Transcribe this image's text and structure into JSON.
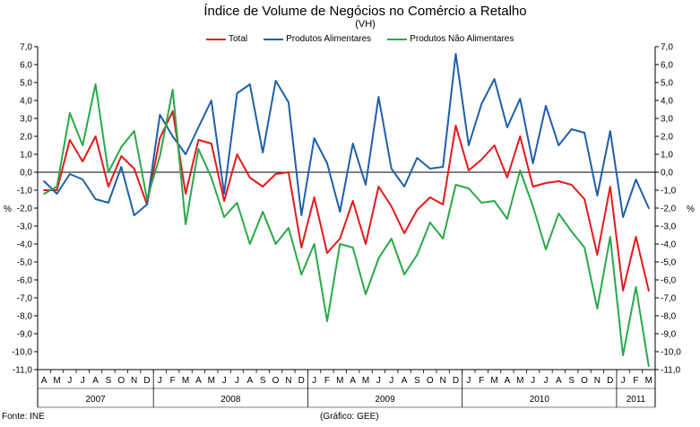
{
  "chart_data": {
    "type": "line",
    "title": "Índice de Volume de Negócios no Comércio a Retalho",
    "subtitle": "(VH)",
    "ylabel_left": "%",
    "ylabel_right": "%",
    "ylim": [
      -11,
      7
    ],
    "yticks": [
      7.0,
      6.0,
      5.0,
      4.0,
      3.0,
      2.0,
      1.0,
      0.0,
      -1.0,
      -2.0,
      -3.0,
      -4.0,
      -5.0,
      -6.0,
      -7.0,
      -8.0,
      -9.0,
      -10.0,
      -11.0
    ],
    "ytick_labels_left": [
      "7,0",
      "6,0",
      "5,0",
      "4,0",
      "3,0",
      "2,0",
      "1,0",
      "0,0",
      "-1,0",
      "-2,0",
      "-3,0",
      "-4,0",
      "-5,0",
      "-6,0",
      "-7,0",
      "-8,0",
      "-9,0",
      "-10,0",
      "-11,0"
    ],
    "ytick_labels_right": [
      "7,0",
      "6,0",
      "5,0",
      "4,0",
      "3,0",
      "2,0",
      "1,0",
      "0,0",
      "-1,0",
      "-2,0",
      "-3,0",
      "-4,0",
      "-5,0",
      "-6,0",
      "-7,0",
      "-8,0",
      "-9,0",
      "-10,0",
      "-11,0"
    ],
    "months": [
      "A",
      "M",
      "J",
      "J",
      "A",
      "S",
      "O",
      "N",
      "D",
      "J",
      "F",
      "M",
      "A",
      "M",
      "J",
      "J",
      "A",
      "S",
      "O",
      "N",
      "D",
      "J",
      "F",
      "M",
      "A",
      "M",
      "J",
      "J",
      "A",
      "S",
      "O",
      "N",
      "D",
      "J",
      "F",
      "M",
      "A",
      "M",
      "J",
      "J",
      "A",
      "S",
      "O",
      "N",
      "D",
      "J",
      "F",
      "M"
    ],
    "years": [
      {
        "label": "2007",
        "start": 0,
        "end": 8
      },
      {
        "label": "2008",
        "start": 9,
        "end": 20
      },
      {
        "label": "2009",
        "start": 21,
        "end": 32
      },
      {
        "label": "2010",
        "start": 33,
        "end": 44
      },
      {
        "label": "2011",
        "start": 45,
        "end": 47
      }
    ],
    "series": [
      {
        "name": "Total",
        "color": "#e31a1c",
        "values": [
          -1.0,
          -1.0,
          1.8,
          0.6,
          2.0,
          -0.8,
          0.9,
          0.2,
          -1.8,
          1.9,
          3.4,
          -1.2,
          1.8,
          1.6,
          -1.6,
          1.0,
          -0.3,
          -0.8,
          -0.1,
          0.0,
          -4.2,
          -1.4,
          -4.5,
          -3.7,
          -1.6,
          -4.0,
          -0.8,
          -1.9,
          -3.4,
          -2.1,
          -1.4,
          -1.8,
          2.6,
          0.1,
          0.7,
          1.5,
          -0.3,
          2.0,
          -0.8,
          -0.6,
          -0.5,
          -0.7,
          -1.5,
          -4.6,
          -0.8,
          -6.6,
          -3.6,
          -6.6
        ]
      },
      {
        "name": "Produtos Alimentares",
        "color": "#1f5fa8",
        "values": [
          -0.5,
          -1.2,
          -0.1,
          -0.4,
          -1.5,
          -1.7,
          0.3,
          -2.4,
          -1.8,
          3.2,
          2.0,
          1.0,
          2.5,
          4.0,
          -1.2,
          4.4,
          4.9,
          1.1,
          5.1,
          3.9,
          -2.4,
          1.9,
          0.5,
          -2.2,
          1.6,
          -0.7,
          4.2,
          0.2,
          -0.8,
          0.8,
          0.2,
          0.3,
          6.6,
          1.5,
          3.8,
          5.2,
          2.5,
          4.1,
          0.5,
          3.7,
          1.5,
          2.4,
          2.2,
          -1.3,
          2.3,
          -2.5,
          -0.4,
          -2.0
        ]
      },
      {
        "name": "Produtos Não Alimentares",
        "color": "#2aa84a",
        "values": [
          -1.2,
          -0.8,
          3.3,
          1.5,
          4.9,
          0.0,
          1.4,
          2.3,
          -1.5,
          0.9,
          4.6,
          -2.9,
          1.3,
          -0.3,
          -2.5,
          -1.7,
          -4.0,
          -2.2,
          -4.0,
          -3.1,
          -5.7,
          -4.0,
          -8.3,
          -4.0,
          -4.2,
          -6.8,
          -4.8,
          -3.7,
          -5.7,
          -4.6,
          -2.8,
          -3.7,
          -0.7,
          -0.9,
          -1.7,
          -1.6,
          -2.6,
          0.1,
          -1.9,
          -4.3,
          -2.3,
          -3.3,
          -4.2,
          -7.6,
          -3.6,
          -10.2,
          -6.4,
          -10.8
        ]
      }
    ]
  },
  "source": "Fonte: INE",
  "credit": "(Gráfico: GEE)"
}
